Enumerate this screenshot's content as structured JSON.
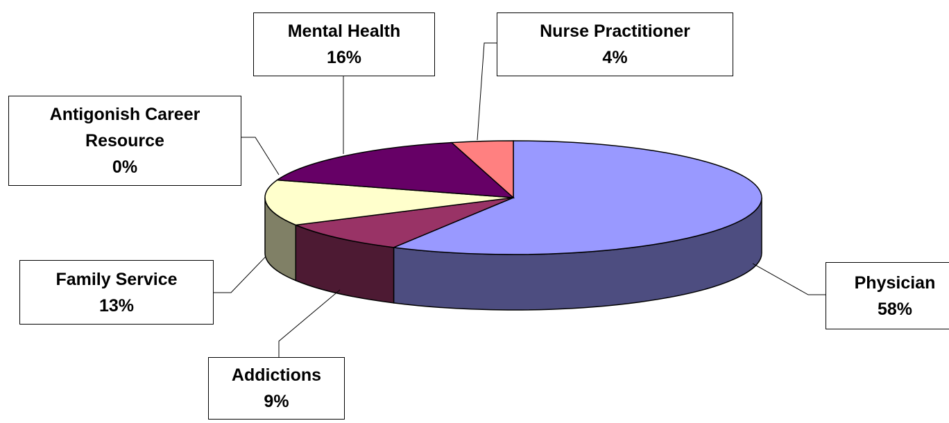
{
  "chart_data": {
    "type": "pie",
    "categories": [
      "Physician",
      "Addictions",
      "Family Service",
      "Antigonish Career Resource",
      "Mental Health",
      "Nurse Practitioner"
    ],
    "values": [
      58,
      9,
      13,
      0,
      16,
      4
    ],
    "value_labels": [
      "58%",
      "9%",
      "13%",
      "0%",
      "16%",
      "4%"
    ],
    "colors": [
      "#9999ff",
      "#993366",
      "#ffffcc",
      "#ccffff",
      "#660066",
      "#ff8080"
    ]
  }
}
